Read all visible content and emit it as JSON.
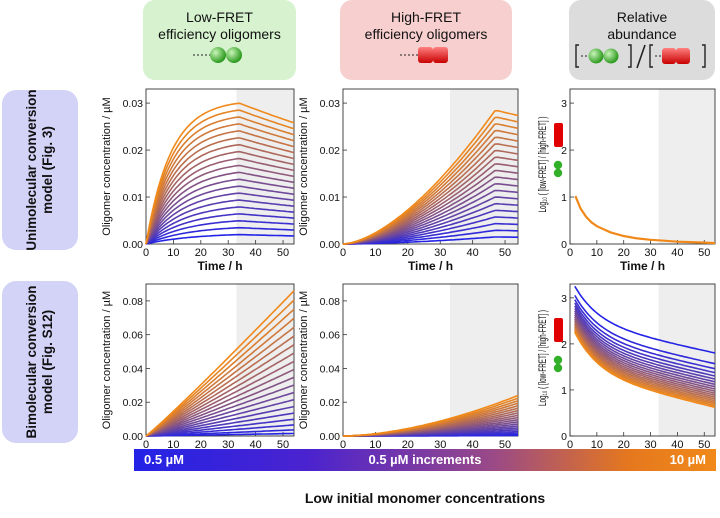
{
  "headers": {
    "low_fret": {
      "line1": "Low-FRET",
      "line2": "efficiency oligomers"
    },
    "high_fret": {
      "line1": "High-FRET",
      "line2": "efficiency oligomers"
    },
    "relative": {
      "line1": "Relative",
      "line2": "abundance"
    }
  },
  "rows": {
    "unimolecular": "Unimolecular conversion model (Fig. 3)",
    "bimolecular": "Bimolecular conversion model (Fig. S12)"
  },
  "colorbar": {
    "low_label": "0.5 µM",
    "mid_label": "0.5 µM increments",
    "high_label": "10 µM",
    "caption": "Low initial monomer concentrations",
    "color_low": "#2323e6",
    "color_high": "#f0891a"
  },
  "chart_data": [
    {
      "id": "uni_low",
      "type": "line",
      "xlabel": "Time / h",
      "ylabel": "Oligomer concentration / µM",
      "xlim": [
        0,
        54
      ],
      "ylim": [
        0,
        0.033
      ],
      "xticks": [
        0,
        10,
        20,
        30,
        40,
        50
      ],
      "yticks": [
        "0.00",
        "0.01",
        "0.02",
        "0.03"
      ],
      "shaded_from": 33,
      "series_count": 20,
      "concentration_step_uM": 0.5,
      "peak_time_h": 34,
      "final_at_54h_fraction_of_peak": 0.86,
      "max_curve_peak": 0.03,
      "min_curve_peak": 0.002
    },
    {
      "id": "uni_high",
      "type": "line",
      "xlabel": "Time / h",
      "ylabel": "Oligomer concentration / µM",
      "xlim": [
        0,
        54
      ],
      "ylim": [
        0,
        0.033
      ],
      "xticks": [
        0,
        10,
        20,
        30,
        40,
        50
      ],
      "yticks": [
        "0.00",
        "0.01",
        "0.02",
        "0.03"
      ],
      "shaded_from": 33,
      "series_count": 20,
      "concentration_step_uM": 0.5,
      "peak_time_h": 47,
      "final_at_54h_fraction_of_peak": 0.96,
      "max_curve_peak": 0.0285,
      "min_curve_peak": 0.0015
    },
    {
      "id": "uni_rel",
      "type": "line",
      "xlabel": "Time / h",
      "ylabel": "Log₁₀ ( [low-FRET] / [high-FRET] )",
      "xlim": [
        0,
        54
      ],
      "ylim": [
        0,
        3.3
      ],
      "xticks": [
        0,
        10,
        20,
        30,
        40,
        50
      ],
      "yticks": [
        "0",
        "1",
        "2",
        "3"
      ],
      "shaded_from": 33,
      "series": [
        {
          "x": [
            2,
            4,
            6,
            8,
            10,
            15,
            20,
            25,
            30,
            35,
            40,
            45,
            50,
            54
          ],
          "y": [
            1.02,
            0.75,
            0.58,
            0.46,
            0.38,
            0.25,
            0.17,
            0.12,
            0.09,
            0.07,
            0.05,
            0.04,
            0.03,
            0.02
          ]
        }
      ]
    },
    {
      "id": "bi_low",
      "type": "line",
      "xlabel": "Time / h",
      "ylabel": "Oligomer concentration / µM",
      "xlim": [
        0,
        54
      ],
      "ylim": [
        0,
        0.09
      ],
      "xticks": [
        0,
        10,
        20,
        30,
        40,
        50
      ],
      "yticks": [
        "0.00",
        "0.02",
        "0.04",
        "0.06",
        "0.08"
      ],
      "shaded_from": 33,
      "series_count": 20,
      "concentration_step_uM": 0.5,
      "max_curve_end": 0.086,
      "min_curve_end": 0.0015
    },
    {
      "id": "bi_high",
      "type": "line",
      "xlabel": "Time / h",
      "ylabel": "Oligomer concentration / µM",
      "xlim": [
        0,
        54
      ],
      "ylim": [
        0,
        0.09
      ],
      "xticks": [
        0,
        10,
        20,
        30,
        40,
        50
      ],
      "yticks": [
        "0.00",
        "0.02",
        "0.04",
        "0.06",
        "0.08"
      ],
      "shaded_from": 33,
      "series_count": 20,
      "concentration_step_uM": 0.5,
      "max_curve_end": 0.024,
      "min_curve_end": 0.0003
    },
    {
      "id": "bi_rel",
      "type": "line",
      "xlabel": "Time / h",
      "ylabel": "Log₁₀ ( [low-FRET] / [high-FRET] )",
      "xlim": [
        0,
        54
      ],
      "ylim": [
        0,
        3.3
      ],
      "xticks": [
        0,
        10,
        20,
        30,
        40,
        50
      ],
      "yticks": [
        "0",
        "1",
        "2",
        "3"
      ],
      "shaded_from": 33,
      "series_count": 20,
      "lowest_conc_curve": {
        "start": 3.25,
        "end": 1.8
      },
      "highest_conc_curve": {
        "start": 2.25,
        "end": 0.62
      }
    }
  ]
}
